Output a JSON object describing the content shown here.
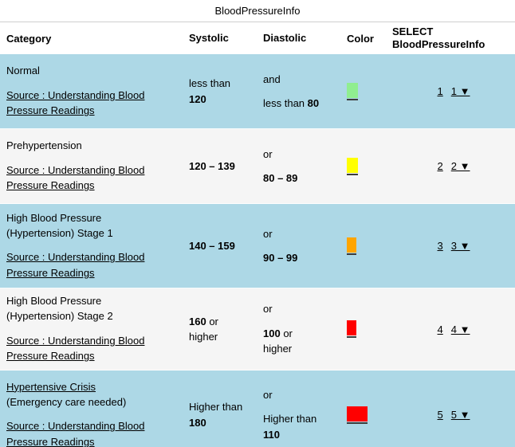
{
  "title": "BloodPressureInfo",
  "columns": {
    "category": "Category",
    "systolic": "Systolic",
    "diastolic": "Diastolic",
    "color": "Color",
    "select_line1": "SELECT",
    "select_line2": "BloodPressureInfo"
  },
  "colors": {
    "row_stripe_blue": "#ADD8E6",
    "row_stripe_light": "#F5F5F5",
    "swatch_green": "#90EE90",
    "swatch_yellow": "#FFFF00",
    "swatch_orange": "#FFA500",
    "swatch_red": "#FF0000",
    "link_text": "#000000"
  },
  "rows": [
    {
      "category_link": "",
      "category_text": "Normal",
      "source_link": "Source : Understanding Blood Pressure Readings",
      "systolic_pre": "less than ",
      "systolic_bold": "120",
      "systolic_post": "",
      "conjunction": "and",
      "diastolic_pre": "less than ",
      "diastolic_bold": "80",
      "diastolic_post": "",
      "color_hex": "#90EE90",
      "swatch_css": "background:#90EE90;width:14px",
      "select_label": "1",
      "select_dropdown_label": "1 ▼"
    },
    {
      "category_link": "",
      "category_text": "Prehypertension",
      "source_link": "Source : Understanding Blood Pressure Readings",
      "systolic_pre": "",
      "systolic_bold": "120 – 139",
      "systolic_post": "",
      "conjunction": "or",
      "diastolic_pre": "",
      "diastolic_bold": "80 – 89",
      "diastolic_post": "",
      "color_hex": "#FFFF00",
      "swatch_css": "background:#FFFF00;width:14px",
      "select_label": "2",
      "select_dropdown_label": "2 ▼"
    },
    {
      "category_link": "",
      "category_text": "High Blood Pressure (Hypertension) Stage 1",
      "source_link": "Source : Understanding Blood Pressure Readings",
      "systolic_pre": "",
      "systolic_bold": "140 – 159",
      "systolic_post": "",
      "conjunction": "or",
      "diastolic_pre": "",
      "diastolic_bold": "90 – 99",
      "diastolic_post": "",
      "color_hex": "#FFA500",
      "swatch_css": "background:#FFA500;width:12px",
      "select_label": "3",
      "select_dropdown_label": "3 ▼"
    },
    {
      "category_link": "",
      "category_text": "High Blood Pressure (Hypertension) Stage 2",
      "source_link": "Source : Understanding Blood Pressure Readings",
      "systolic_pre": "",
      "systolic_bold": "160",
      "systolic_post": " or higher",
      "conjunction": "or",
      "diastolic_pre": "",
      "diastolic_bold": "100",
      "diastolic_post": " or higher",
      "color_hex": "#FF0000",
      "swatch_css": "background:#FF0000;width:12px",
      "select_label": "4",
      "select_dropdown_label": "4 ▼"
    },
    {
      "category_link": "Hypertensive Crisis",
      "category_text": "(Emergency care needed)",
      "source_link": "Source : Understanding Blood Pressure Readings",
      "systolic_pre": "Higher than ",
      "systolic_bold": "180",
      "systolic_post": "",
      "conjunction": "or",
      "diastolic_pre": "Higher than ",
      "diastolic_bold": "110",
      "diastolic_post": "",
      "color_hex": "#FF0000",
      "swatch_css": "background:#FF0000;width:26px",
      "select_label": "5",
      "select_dropdown_label": "5 ▼"
    }
  ]
}
